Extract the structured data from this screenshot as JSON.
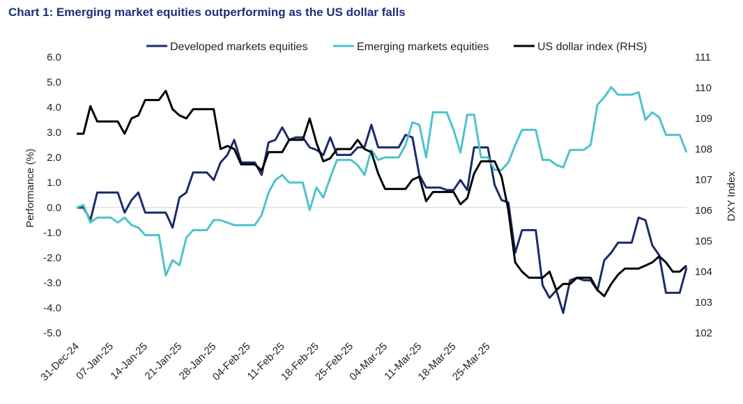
{
  "chart_data": {
    "type": "line",
    "title": "Chart 1: Emerging market equities outperforming as the US dollar falls",
    "ylabel": "Performance (%)",
    "y2label": "DXY Index",
    "ylim": [
      -5.0,
      6.0
    ],
    "y2lim": [
      102,
      111
    ],
    "yticks": [
      "6.0",
      "5.0",
      "4.0",
      "3.0",
      "2.0",
      "1.0",
      "0.0",
      "-1.0",
      "-2.0",
      "-3.0",
      "-4.0",
      "-5.0"
    ],
    "y2ticks": [
      "111",
      "110",
      "109",
      "108",
      "107",
      "106",
      "105",
      "104",
      "103",
      "102"
    ],
    "xticks": [
      "31-Dec-24",
      "07-Jan-25",
      "14-Jan-25",
      "21-Jan-25",
      "28-Jan-25",
      "04-Feb-25",
      "11-Feb-25",
      "18-Feb-25",
      "25-Feb-25",
      "04-Mar-25",
      "11-Mar-25",
      "18-Mar-25",
      "25-Mar-25"
    ],
    "grid": false,
    "legend_position": "top",
    "x_index_range": [
      0,
      89
    ],
    "series": [
      {
        "name": "Developed markets equities",
        "axis": "left",
        "color": "#1b2a6b",
        "x": [
          0,
          1,
          2,
          3,
          4,
          5,
          6,
          7,
          8,
          9,
          10,
          11,
          12,
          13,
          14,
          15,
          16,
          17,
          18,
          19,
          20,
          21,
          22,
          23,
          24,
          25,
          26,
          27,
          28,
          29,
          30,
          31,
          32,
          33,
          34,
          35,
          36,
          37,
          38,
          39,
          40,
          41,
          42,
          43,
          44,
          45,
          46,
          47,
          48,
          49,
          50,
          51,
          52,
          53,
          54,
          55,
          56,
          57,
          58,
          59,
          60,
          61,
          62,
          63,
          64,
          65,
          66,
          67,
          68,
          69,
          70,
          71,
          72,
          73,
          74,
          75,
          76,
          77,
          78,
          79,
          80,
          81,
          82,
          83,
          84,
          85,
          86,
          87,
          88,
          89
        ],
        "values": [
          0.0,
          0.0,
          -0.5,
          0.6,
          0.6,
          0.6,
          0.6,
          -0.2,
          0.3,
          0.6,
          -0.2,
          -0.2,
          -0.2,
          -0.2,
          -0.8,
          0.4,
          0.6,
          1.4,
          1.4,
          1.4,
          1.1,
          1.8,
          2.1,
          2.7,
          1.8,
          1.8,
          1.8,
          1.3,
          2.6,
          2.7,
          3.2,
          2.7,
          2.8,
          2.8,
          2.4,
          2.3,
          2.1,
          2.8,
          2.1,
          2.1,
          2.1,
          2.4,
          2.4,
          3.3,
          2.4,
          2.4,
          2.4,
          2.4,
          2.9,
          2.8,
          1.3,
          0.8,
          0.8,
          0.8,
          0.7,
          0.7,
          1.1,
          0.7,
          2.4,
          2.4,
          2.4,
          0.9,
          0.3,
          0.2,
          -1.8,
          -0.9,
          -0.9,
          -0.9,
          -3.1,
          -3.6,
          -3.3,
          -4.2,
          -2.9,
          -2.8,
          -2.9,
          -2.9,
          -3.3,
          -2.1,
          -1.8,
          -1.4,
          -1.4,
          -1.4,
          -0.4,
          -0.5,
          -1.5,
          -1.9,
          -3.4,
          -3.4,
          -3.4,
          -2.4
        ]
      },
      {
        "name": "Emerging markets equities",
        "axis": "left",
        "color": "#4cc3cc",
        "x": [
          0,
          1,
          2,
          3,
          4,
          5,
          6,
          7,
          8,
          9,
          10,
          11,
          12,
          13,
          14,
          15,
          16,
          17,
          18,
          19,
          20,
          21,
          22,
          23,
          24,
          25,
          26,
          27,
          28,
          29,
          30,
          31,
          32,
          33,
          34,
          35,
          36,
          37,
          38,
          39,
          40,
          41,
          42,
          43,
          44,
          45,
          46,
          47,
          48,
          49,
          50,
          51,
          52,
          53,
          54,
          55,
          56,
          57,
          58,
          59,
          60,
          61,
          62,
          63,
          64,
          65,
          66,
          67,
          68,
          69,
          70,
          71,
          72,
          73,
          74,
          75,
          76,
          77,
          78,
          79,
          80,
          81,
          82,
          83,
          84,
          85,
          86,
          87,
          88,
          89
        ],
        "values": [
          0.0,
          0.1,
          -0.6,
          -0.4,
          -0.4,
          -0.4,
          -0.6,
          -0.4,
          -0.7,
          -0.8,
          -1.1,
          -1.1,
          -1.1,
          -2.7,
          -2.1,
          -2.3,
          -1.2,
          -0.9,
          -0.9,
          -0.9,
          -0.5,
          -0.5,
          -0.6,
          -0.7,
          -0.7,
          -0.7,
          -0.7,
          -0.3,
          0.6,
          1.1,
          1.3,
          1.0,
          1.0,
          1.0,
          -0.1,
          0.8,
          0.4,
          1.2,
          1.9,
          1.9,
          1.9,
          1.7,
          1.3,
          2.3,
          1.9,
          2.0,
          2.0,
          2.0,
          2.5,
          3.4,
          3.3,
          2.0,
          3.8,
          3.8,
          3.8,
          3.1,
          2.2,
          3.7,
          3.7,
          2.0,
          2.0,
          1.5,
          1.5,
          1.8,
          2.5,
          3.1,
          3.1,
          3.1,
          1.9,
          1.9,
          1.7,
          1.6,
          2.3,
          2.3,
          2.3,
          2.5,
          4.1,
          4.4,
          4.8,
          4.5,
          4.5,
          4.5,
          4.6,
          3.5,
          3.8,
          3.6,
          2.9,
          2.9,
          2.9,
          2.2
        ]
      },
      {
        "name": "US dollar index (RHS)",
        "axis": "right",
        "color": "#000000",
        "x": [
          0,
          1,
          2,
          3,
          4,
          5,
          6,
          7,
          8,
          9,
          10,
          11,
          12,
          13,
          14,
          15,
          16,
          17,
          18,
          19,
          20,
          21,
          22,
          23,
          24,
          25,
          26,
          27,
          28,
          29,
          30,
          31,
          32,
          33,
          34,
          35,
          36,
          37,
          38,
          39,
          40,
          41,
          42,
          43,
          44,
          45,
          46,
          47,
          48,
          49,
          50,
          51,
          52,
          53,
          54,
          55,
          56,
          57,
          58,
          59,
          60,
          61,
          62,
          63,
          64,
          65,
          66,
          67,
          68,
          69,
          70,
          71,
          72,
          73,
          74,
          75,
          76,
          77,
          78,
          79,
          80,
          81,
          82,
          83,
          84,
          85,
          86,
          87,
          88,
          89
        ],
        "values": [
          108.5,
          108.5,
          109.4,
          108.9,
          108.9,
          108.9,
          108.9,
          108.5,
          109.0,
          109.1,
          109.6,
          109.6,
          109.6,
          109.9,
          109.3,
          109.1,
          109.0,
          109.3,
          109.3,
          109.3,
          109.3,
          108.0,
          108.1,
          108.0,
          107.5,
          107.5,
          107.5,
          107.3,
          107.9,
          107.9,
          107.9,
          108.3,
          108.3,
          108.3,
          109.0,
          108.2,
          107.6,
          107.7,
          108.0,
          108.0,
          108.0,
          108.3,
          108.0,
          107.9,
          107.2,
          106.7,
          106.7,
          106.7,
          106.7,
          107.0,
          107.1,
          106.3,
          106.6,
          106.6,
          106.6,
          106.6,
          106.2,
          106.4,
          107.2,
          107.6,
          107.6,
          107.6,
          107.1,
          106.0,
          104.3,
          104.0,
          103.8,
          103.8,
          103.8,
          104.0,
          103.4,
          103.6,
          103.6,
          103.8,
          103.8,
          103.8,
          103.4,
          103.2,
          103.6,
          103.9,
          104.1,
          104.1,
          104.1,
          104.2,
          104.3,
          104.5,
          104.3,
          104.0,
          104.0,
          104.2
        ]
      }
    ]
  }
}
